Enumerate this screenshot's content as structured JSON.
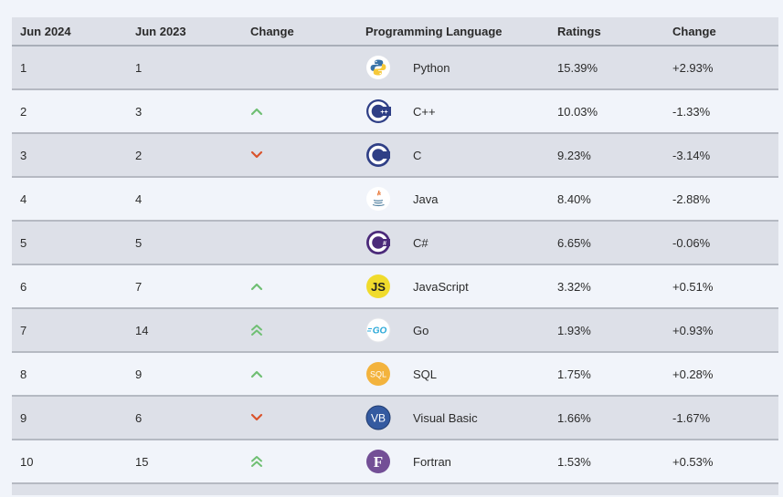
{
  "table": {
    "headers": [
      "Jun 2024",
      "Jun 2023",
      "Change",
      "Programming Language",
      "Ratings",
      "Change"
    ],
    "rows": [
      {
        "jun2024": "1",
        "jun2023": "1",
        "trend": "none",
        "language": "Python",
        "icon": "python-icon",
        "rating": "15.39%",
        "change": "+2.93%"
      },
      {
        "jun2024": "2",
        "jun2023": "3",
        "trend": "up",
        "language": "C++",
        "icon": "cpp-icon",
        "rating": "10.03%",
        "change": "-1.33%"
      },
      {
        "jun2024": "3",
        "jun2023": "2",
        "trend": "down",
        "language": "C",
        "icon": "c-icon",
        "rating": "9.23%",
        "change": "-3.14%"
      },
      {
        "jun2024": "4",
        "jun2023": "4",
        "trend": "none",
        "language": "Java",
        "icon": "java-icon",
        "rating": "8.40%",
        "change": "-2.88%"
      },
      {
        "jun2024": "5",
        "jun2023": "5",
        "trend": "none",
        "language": "C#",
        "icon": "csharp-icon",
        "rating": "6.65%",
        "change": "-0.06%"
      },
      {
        "jun2024": "6",
        "jun2023": "7",
        "trend": "up",
        "language": "JavaScript",
        "icon": "javascript-icon",
        "rating": "3.32%",
        "change": "+0.51%"
      },
      {
        "jun2024": "7",
        "jun2023": "14",
        "trend": "double-up",
        "language": "Go",
        "icon": "go-icon",
        "rating": "1.93%",
        "change": "+0.93%"
      },
      {
        "jun2024": "8",
        "jun2023": "9",
        "trend": "up",
        "language": "SQL",
        "icon": "sql-icon",
        "rating": "1.75%",
        "change": "+0.28%"
      },
      {
        "jun2024": "9",
        "jun2023": "6",
        "trend": "down",
        "language": "Visual Basic",
        "icon": "visual-basic-icon",
        "rating": "1.66%",
        "change": "-1.67%"
      },
      {
        "jun2024": "10",
        "jun2023": "15",
        "trend": "double-up",
        "language": "Fortran",
        "icon": "fortran-icon",
        "rating": "1.53%",
        "change": "+0.53%"
      }
    ]
  },
  "colors": {
    "header_bg": "#dde0e8",
    "row_alt_bg": "#f1f4fa",
    "up_arrow": "#6fbf73",
    "down_arrow": "#d9532c"
  }
}
